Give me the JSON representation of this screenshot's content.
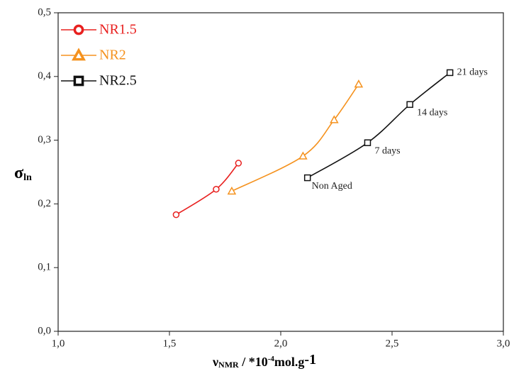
{
  "chart_data": {
    "type": "line",
    "xlabel": [
      "ν",
      "NMR",
      " / *10",
      "-4",
      "mol.g",
      "-1"
    ],
    "ylabel": [
      "σ",
      "ln"
    ],
    "xlim": [
      1.0,
      3.0
    ],
    "xticks": [
      {
        "value": 1.0,
        "label": "1,0"
      },
      {
        "value": 1.5,
        "label": "1,5"
      },
      {
        "value": 2.0,
        "label": "2,0"
      },
      {
        "value": 2.5,
        "label": "2,5"
      },
      {
        "value": 3.0,
        "label": "3,0"
      }
    ],
    "ylim": [
      0.0,
      0.5
    ],
    "yticks": [
      {
        "value": 0.0,
        "label": "0,0"
      },
      {
        "value": 0.1,
        "label": "0,1"
      },
      {
        "value": 0.2,
        "label": "0,2"
      },
      {
        "value": 0.3,
        "label": "0,3"
      },
      {
        "value": 0.4,
        "label": "0,4"
      },
      {
        "value": 0.5,
        "label": "0,5"
      }
    ],
    "legend": "upper left",
    "series": [
      {
        "name": "NR1.5",
        "color": "#e8201f",
        "marker": "circle",
        "x": [
          1.53,
          1.71,
          1.81
        ],
        "values": [
          0.183,
          0.223,
          0.264
        ]
      },
      {
        "name": "NR2",
        "color": "#f5921e",
        "marker": "triangle",
        "x": [
          1.78,
          2.1,
          2.24,
          2.35
        ],
        "values": [
          0.22,
          0.275,
          0.332,
          0.388
        ]
      },
      {
        "name": "NR2.5",
        "color": "#111111",
        "marker": "square",
        "x": [
          2.12,
          2.39,
          2.58,
          2.76
        ],
        "values": [
          0.241,
          0.296,
          0.356,
          0.406
        ],
        "point_labels": [
          "Non Aged",
          "7 days",
          "14 days",
          "21 days"
        ]
      }
    ]
  }
}
